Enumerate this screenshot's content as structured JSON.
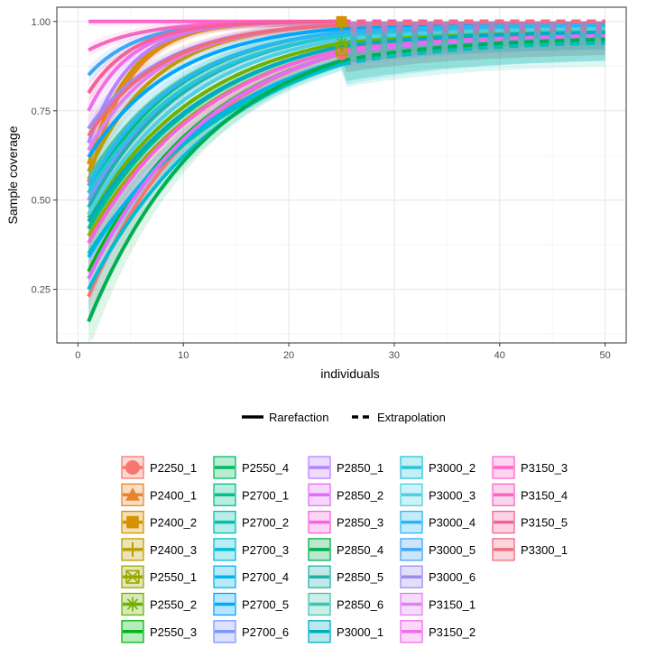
{
  "chart_data": {
    "type": "line",
    "xlabel": "individuals",
    "ylabel": "Sample coverage",
    "xlim": [
      -2,
      52
    ],
    "ylim": [
      0.1,
      1.04
    ],
    "x_ticks": [
      0,
      10,
      20,
      30,
      40,
      50
    ],
    "y_ticks": [
      0.25,
      0.5,
      0.75,
      1.0
    ],
    "x_tick_labels": [
      "0",
      "10",
      "20",
      "30",
      "40",
      "50"
    ],
    "y_tick_labels": [
      "0.25",
      "0.50",
      "0.75",
      "1.00"
    ],
    "grid": true,
    "observed_n": 25,
    "x_max": 50,
    "linetype_legend": {
      "solid": "Rarefaction",
      "dashed": "Extrapolation"
    },
    "series": [
      {
        "name": "P2250_1",
        "color": "#F8766D",
        "marker": "circle",
        "start": 0.23,
        "obs": 0.91,
        "end": 0.96
      },
      {
        "name": "P2400_1",
        "color": "#E9842C",
        "marker": "triangle",
        "start": 0.55,
        "obs": 1.0,
        "end": 1.0
      },
      {
        "name": "P2400_2",
        "color": "#D69100",
        "marker": "square",
        "start": 0.6,
        "obs": 1.0,
        "end": 1.0
      },
      {
        "name": "P2400_3",
        "color": "#BC9D00",
        "marker": "plus",
        "start": 0.58,
        "obs": 0.99,
        "end": 1.0
      },
      {
        "name": "P2550_1",
        "color": "#9CA700",
        "marker": "boxx",
        "start": 0.4,
        "obs": 0.92,
        "end": 0.98
      },
      {
        "name": "P2550_2",
        "color": "#6FB000",
        "marker": "asterisk",
        "start": 0.45,
        "obs": 0.94,
        "end": 0.98
      },
      {
        "name": "P2550_3",
        "color": "#00B813",
        "marker": "none",
        "start": 0.3,
        "obs": 0.91,
        "end": 0.96
      },
      {
        "name": "P2550_4",
        "color": "#00BD61",
        "marker": "none",
        "start": 0.52,
        "obs": 0.97,
        "end": 0.99
      },
      {
        "name": "P2700_1",
        "color": "#00C08E",
        "marker": "none",
        "start": 0.42,
        "obs": 0.93,
        "end": 0.97
      },
      {
        "name": "P2700_2",
        "color": "#00C0B4",
        "marker": "none",
        "start": 0.35,
        "obs": 0.88,
        "end": 0.94
      },
      {
        "name": "P2700_3",
        "color": "#00BDD4",
        "marker": "none",
        "start": 0.25,
        "obs": 0.88,
        "end": 0.95
      },
      {
        "name": "P2700_4",
        "color": "#00B5EE",
        "marker": "none",
        "start": 0.34,
        "obs": 0.89,
        "end": 0.95
      },
      {
        "name": "P2700_5",
        "color": "#00A7FF",
        "marker": "none",
        "start": 0.62,
        "obs": 0.98,
        "end": 1.0
      },
      {
        "name": "P2700_6",
        "color": "#7F96FF",
        "marker": "none",
        "start": 0.5,
        "obs": 0.96,
        "end": 0.99
      },
      {
        "name": "P2850_1",
        "color": "#BC81FF",
        "marker": "none",
        "start": 0.66,
        "obs": 1.0,
        "end": 1.0
      },
      {
        "name": "P2850_2",
        "color": "#E26EF7",
        "marker": "none",
        "start": 0.28,
        "obs": 0.91,
        "end": 0.96
      },
      {
        "name": "P2850_3",
        "color": "#F863DF",
        "marker": "none",
        "start": 0.38,
        "obs": 0.92,
        "end": 0.97
      },
      {
        "name": "P2850_4",
        "color": "#00B050",
        "marker": "none",
        "start": 0.16,
        "obs": 0.89,
        "end": 0.95
      },
      {
        "name": "P2850_5",
        "color": "#20B2AA",
        "marker": "none",
        "start": 0.48,
        "obs": 0.96,
        "end": 0.99
      },
      {
        "name": "P2850_6",
        "color": "#40C4B0",
        "marker": "none",
        "start": 0.56,
        "obs": 0.97,
        "end": 0.99
      },
      {
        "name": "P3000_1",
        "color": "#00ACC1",
        "marker": "none",
        "start": 0.44,
        "obs": 0.93,
        "end": 0.97
      },
      {
        "name": "P3000_2",
        "color": "#26C6DA",
        "marker": "none",
        "start": 0.52,
        "obs": 0.96,
        "end": 0.98
      },
      {
        "name": "P3000_3",
        "color": "#4DD0E1",
        "marker": "none",
        "start": 0.46,
        "obs": 0.95,
        "end": 0.98
      },
      {
        "name": "P3000_4",
        "color": "#29B6F6",
        "marker": "none",
        "start": 0.54,
        "obs": 0.97,
        "end": 0.99
      },
      {
        "name": "P3000_5",
        "color": "#42A5F5",
        "marker": "none",
        "start": 0.85,
        "obs": 1.0,
        "end": 1.0
      },
      {
        "name": "P3000_6",
        "color": "#9C8CF2",
        "marker": "none",
        "start": 0.7,
        "obs": 0.99,
        "end": 1.0
      },
      {
        "name": "P3150_1",
        "color": "#E080F0",
        "marker": "none",
        "start": 0.64,
        "obs": 0.99,
        "end": 1.0
      },
      {
        "name": "P3150_2",
        "color": "#F06EE8",
        "marker": "none",
        "start": 0.75,
        "obs": 1.0,
        "end": 1.0
      },
      {
        "name": "P3150_3",
        "color": "#FF66CC",
        "marker": "none",
        "start": 1.0,
        "obs": 1.0,
        "end": 1.0
      },
      {
        "name": "P3150_4",
        "color": "#F766C0",
        "marker": "none",
        "start": 0.92,
        "obs": 1.0,
        "end": 1.0
      },
      {
        "name": "P3150_5",
        "color": "#F5609A",
        "marker": "none",
        "start": 0.8,
        "obs": 1.0,
        "end": 1.0
      },
      {
        "name": "P3300_1",
        "color": "#F06A80",
        "marker": "none",
        "start": 0.68,
        "obs": 0.99,
        "end": 1.0
      }
    ]
  }
}
